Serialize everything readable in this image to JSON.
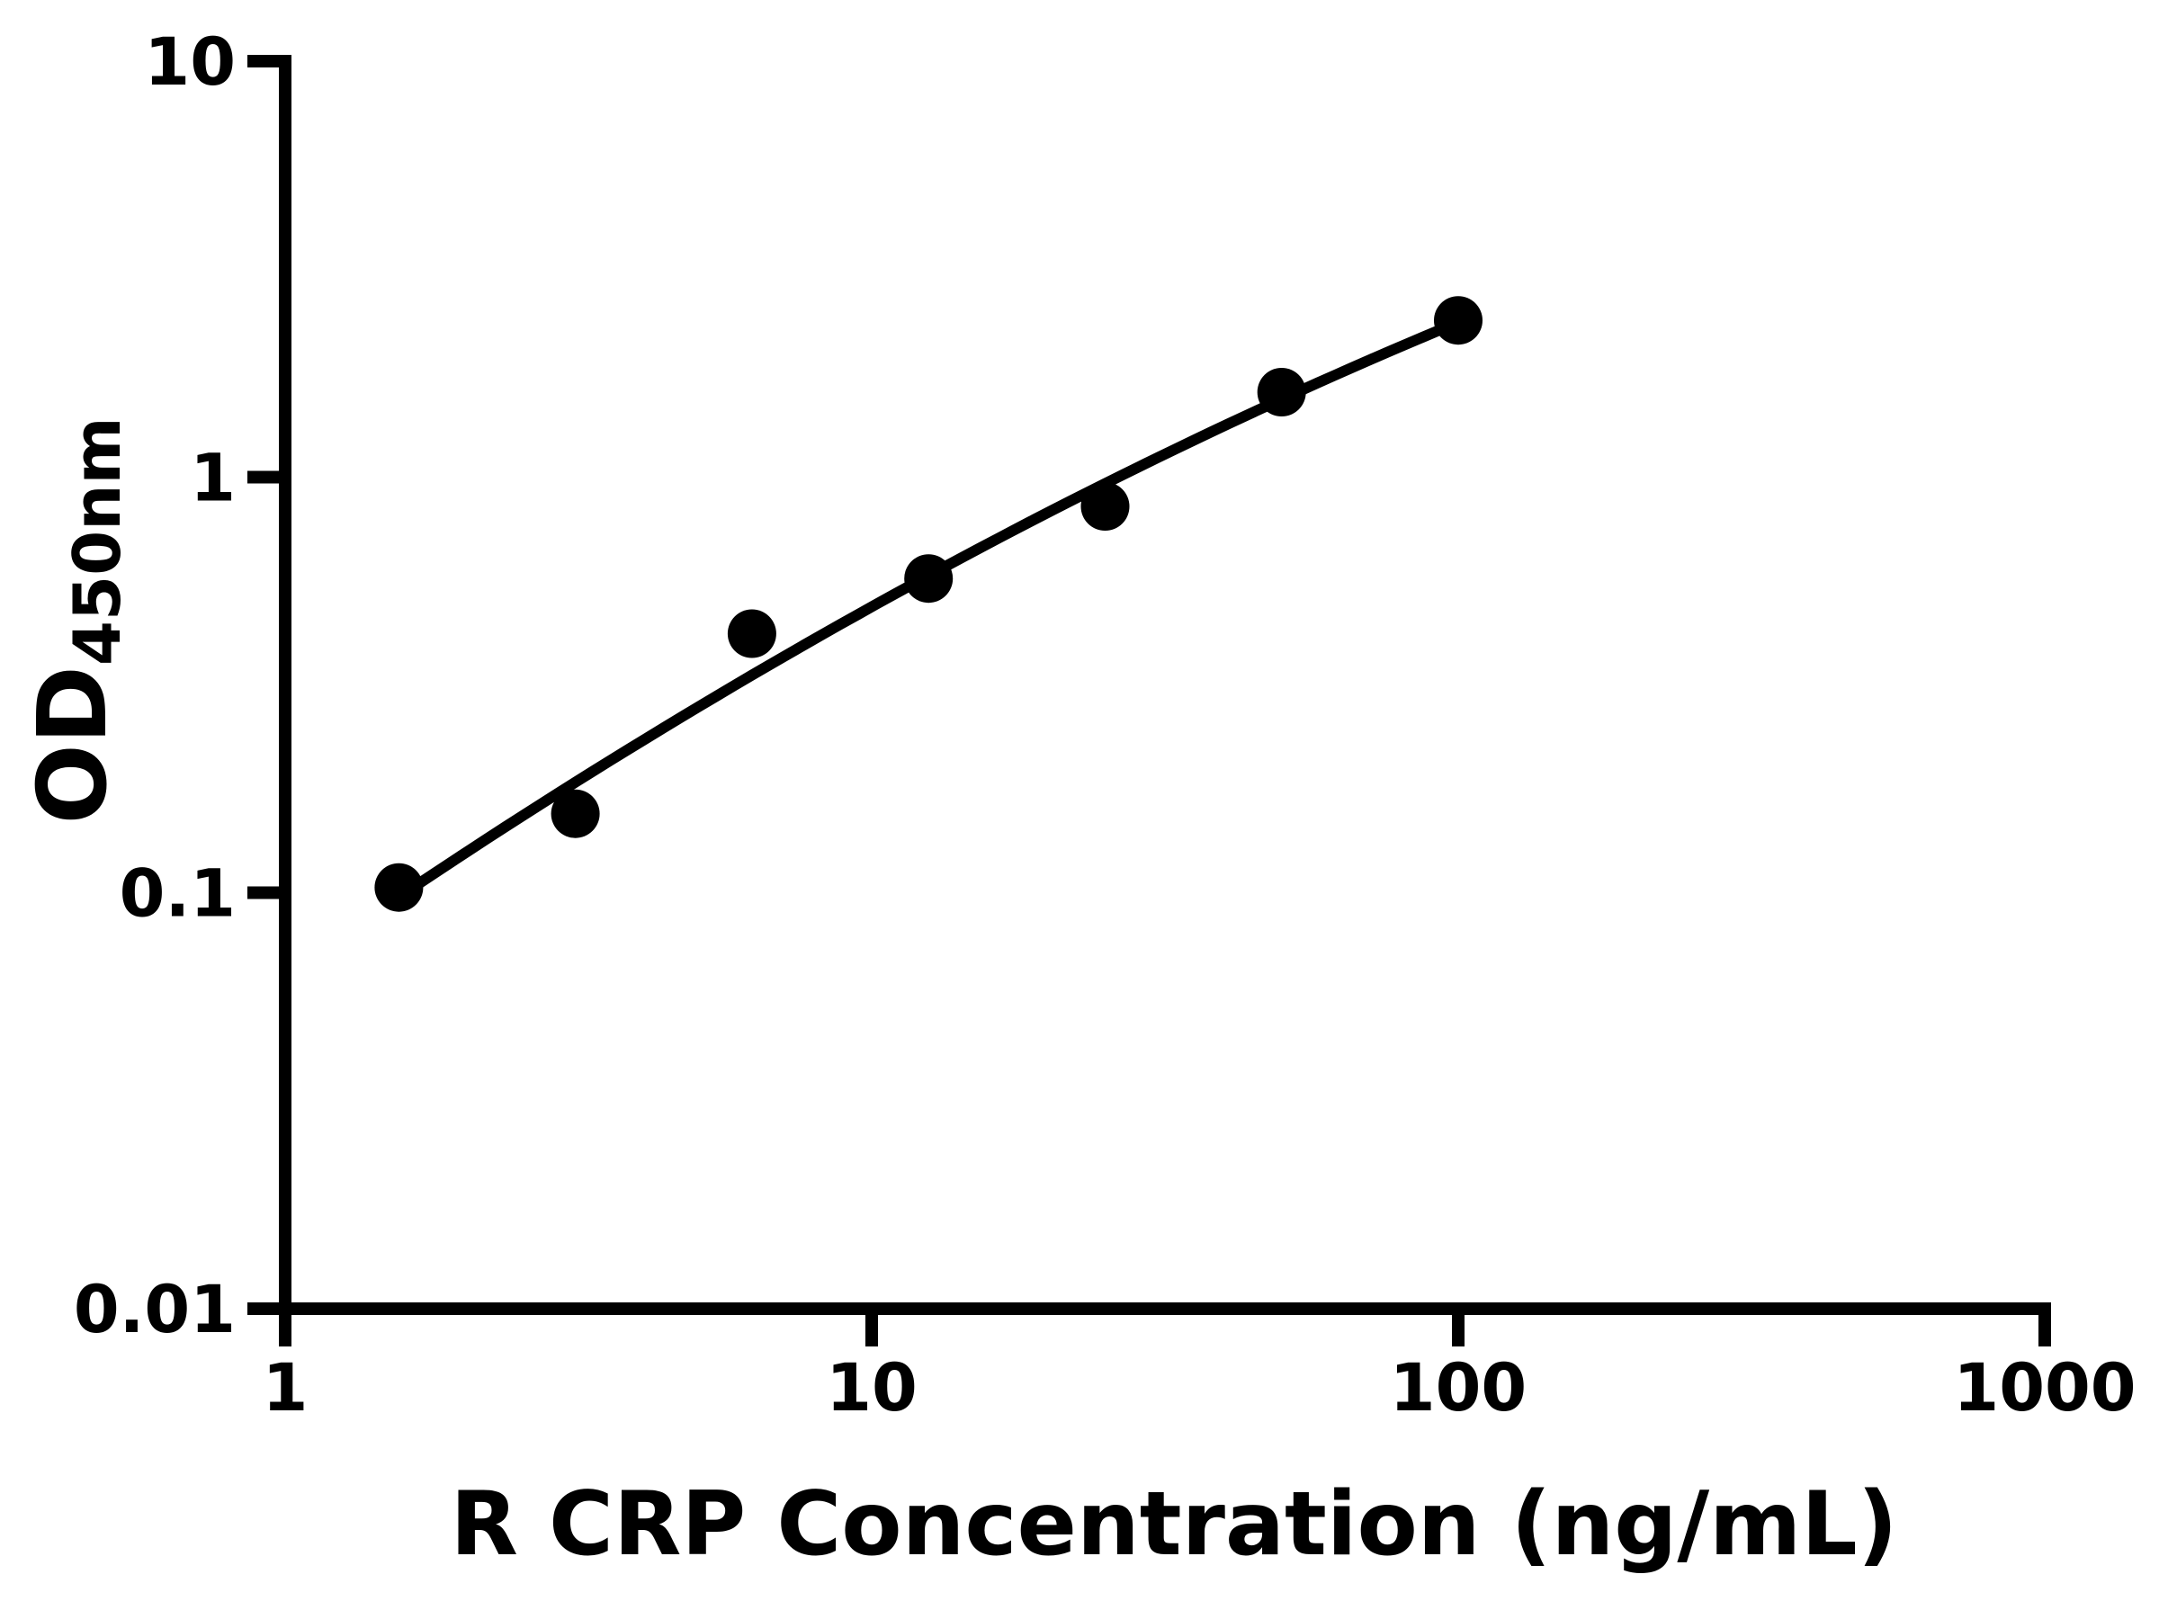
{
  "figure": {
    "background": "#ffffff",
    "ink": "#000000"
  },
  "chart_data": {
    "type": "scatter",
    "title": "",
    "xlabel": "R CRP Concentration (ng/mL)",
    "ylabel_main": "OD",
    "ylabel_sub": "450nm",
    "x_scale": "log",
    "y_scale": "log",
    "xlim": [
      1,
      1000
    ],
    "ylim": [
      0.01,
      10
    ],
    "x_ticks": [
      1,
      10,
      100,
      1000
    ],
    "y_ticks": [
      10,
      1,
      0.1,
      0.01
    ],
    "grid": false,
    "legend": "none",
    "points": [
      {
        "x": 1.5625,
        "y": 0.103
      },
      {
        "x": 3.125,
        "y": 0.155
      },
      {
        "x": 6.25,
        "y": 0.42
      },
      {
        "x": 12.5,
        "y": 0.57
      },
      {
        "x": 25,
        "y": 0.85
      },
      {
        "x": 50,
        "y": 1.6
      },
      {
        "x": 100,
        "y": 2.38
      }
    ],
    "fit_curve": {
      "formula": "log10(y) = a0 + a1*log10(x) + a2*log10(x)^2",
      "a0": -1.1972,
      "a1": 0.9856,
      "a2": -0.1005,
      "x_range": [
        1.5625,
        100
      ]
    },
    "marker": {
      "shape": "circle",
      "color": "#000000",
      "radius_px": 27
    },
    "line_color": "#000000"
  }
}
